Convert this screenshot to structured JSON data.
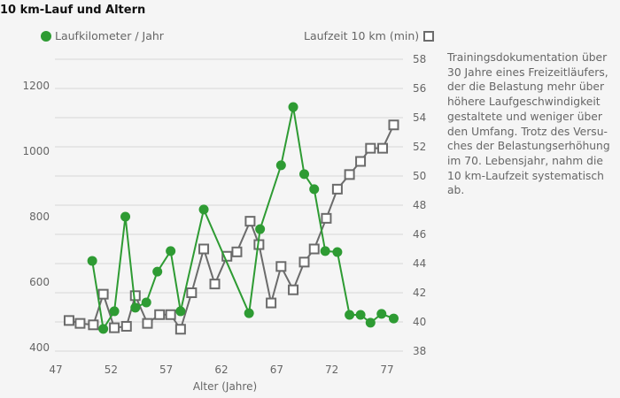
{
  "title": "10 km-Lauf und Altern",
  "legend": {
    "left": "Laufkilometer / Jahr",
    "right": "Laufzeit 10 km (min)"
  },
  "note": "Trainingsdokumentation über 30 Jahre eines Freizeitläufers, der die Belastung mehr über höhere Laufgeschwindigkeit gestaltete und weniger über den Umfang. Trotz des Versu-ches der Belastungserhöhung im 70. Lebensjahr, nahm die 10 km-Laufzeit systematisch ab.",
  "colors": {
    "km": "#2e9b33",
    "time": "#6b6b6b",
    "grid": "#dedede"
  },
  "chart_data": {
    "type": "line",
    "title": "10 km-Lauf und Altern",
    "xlabel": "Alter (Jahre)",
    "ylabel_left": "Laufkilometer / Jahr",
    "ylabel_right": "Laufzeit 10 km (min)",
    "xlim": [
      47,
      78.5
    ],
    "xticks": [
      47,
      52,
      57,
      62,
      67,
      72,
      77
    ],
    "ylim_left": [
      375,
      1375
    ],
    "yticks_left": [
      400,
      600,
      800,
      1000,
      1200
    ],
    "ylim_right": [
      37.5,
      58.5
    ],
    "yticks_right": [
      38,
      40,
      42,
      44,
      46,
      48,
      50,
      52,
      54,
      56,
      58
    ],
    "grid": true,
    "legend_position": "top",
    "series": [
      {
        "name": "Laufkilometer / Jahr",
        "axis": "left",
        "marker": "circle",
        "x": [
          50.3,
          51.3,
          52.3,
          53.3,
          54.2,
          55.2,
          56.2,
          57.4,
          58.3,
          60.4,
          64.5,
          65.5,
          67.4,
          68.5,
          69.5,
          70.4,
          71.4,
          72.5,
          73.6,
          74.6,
          75.5,
          76.5,
          77.6
        ],
        "values": [
          665,
          457,
          511,
          800,
          522,
          538,
          632,
          695,
          511,
          822,
          505,
          762,
          957,
          1135,
          930,
          884,
          695,
          692,
          500,
          500,
          476,
          503,
          489
        ]
      },
      {
        "name": "Laufzeit 10 km (min)",
        "axis": "right",
        "marker": "square",
        "x": [
          48.2,
          49.2,
          50.4,
          51.3,
          52.3,
          53.4,
          54.2,
          55.3,
          56.4,
          57.4,
          58.3,
          59.3,
          60.4,
          61.4,
          62.5,
          63.4,
          64.6,
          65.4,
          66.5,
          67.4,
          68.5,
          69.5,
          70.4,
          71.5,
          72.5,
          73.6,
          74.6,
          75.5,
          76.6,
          77.6
        ],
        "values": [
          40.1,
          39.9,
          39.8,
          41.9,
          39.6,
          39.7,
          41.8,
          39.9,
          40.5,
          40.5,
          39.5,
          42.0,
          45.0,
          42.6,
          44.5,
          44.8,
          46.9,
          45.3,
          41.3,
          43.8,
          42.2,
          44.1,
          45.0,
          47.1,
          49.1,
          50.1,
          51.0,
          51.9,
          51.9,
          53.5
        ]
      }
    ]
  }
}
